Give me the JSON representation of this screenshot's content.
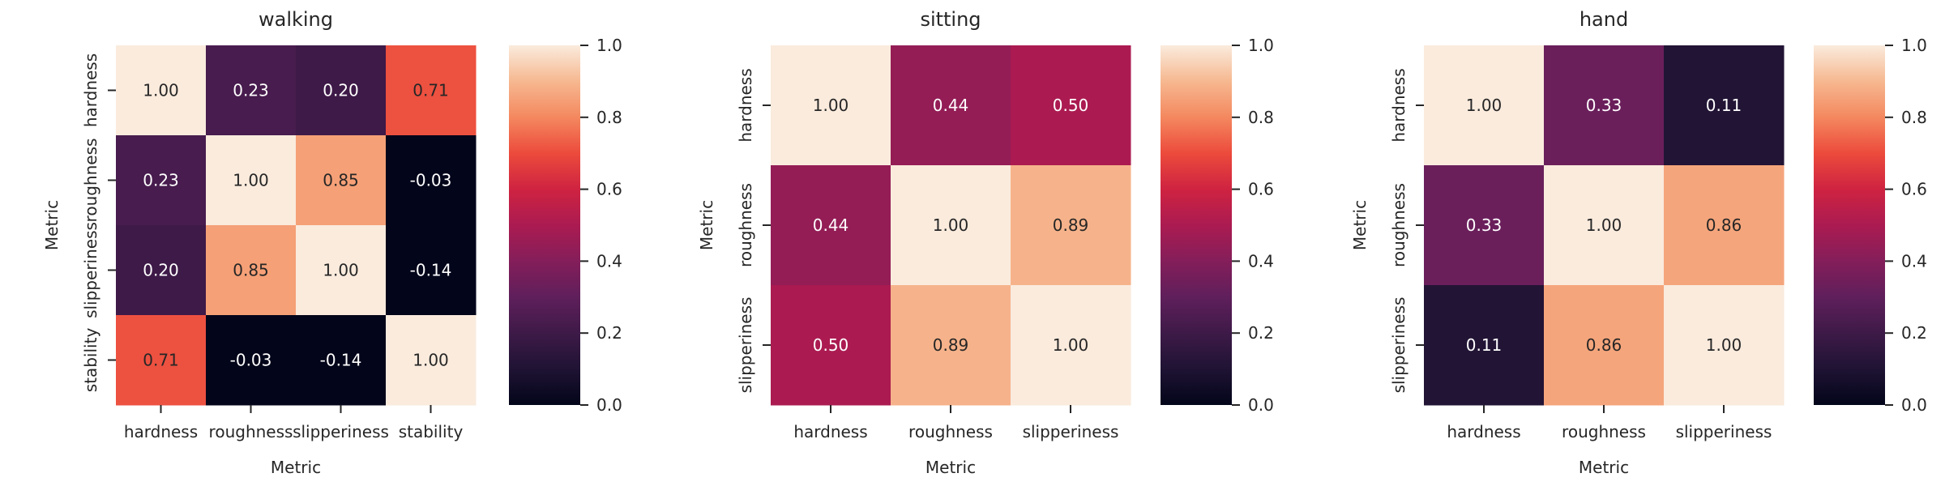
{
  "chart_data": [
    {
      "type": "heatmap",
      "title": "walking",
      "xlabel": "Metric",
      "ylabel": "Metric",
      "categories": [
        "hardness",
        "roughness",
        "slipperiness",
        "stability"
      ],
      "values": [
        [
          1.0,
          0.23,
          0.2,
          0.71
        ],
        [
          0.23,
          1.0,
          0.85,
          -0.03
        ],
        [
          0.2,
          0.85,
          1.0,
          -0.14
        ],
        [
          0.71,
          -0.03,
          -0.14,
          1.0
        ]
      ],
      "colorbar": {
        "range": [
          0.0,
          1.0
        ],
        "ticks": [
          "0.0",
          "0.2",
          "0.4",
          "0.6",
          "0.8",
          "1.0"
        ]
      }
    },
    {
      "type": "heatmap",
      "title": "sitting",
      "xlabel": "Metric",
      "ylabel": "Metric",
      "categories": [
        "hardness",
        "roughness",
        "slipperiness"
      ],
      "values": [
        [
          1.0,
          0.44,
          0.5
        ],
        [
          0.44,
          1.0,
          0.89
        ],
        [
          0.5,
          0.89,
          1.0
        ]
      ],
      "colorbar": {
        "range": [
          0.0,
          1.0
        ],
        "ticks": [
          "0.0",
          "0.2",
          "0.4",
          "0.6",
          "0.8",
          "1.0"
        ]
      }
    },
    {
      "type": "heatmap",
      "title": "hand",
      "xlabel": "Metric",
      "ylabel": "Metric",
      "categories": [
        "hardness",
        "roughness",
        "slipperiness"
      ],
      "values": [
        [
          1.0,
          0.33,
          0.11
        ],
        [
          0.33,
          1.0,
          0.86
        ],
        [
          0.11,
          0.86,
          1.0
        ]
      ],
      "colorbar": {
        "range": [
          0.0,
          1.0
        ],
        "ticks": [
          "0.0",
          "0.2",
          "0.4",
          "0.6",
          "0.8",
          "1.0"
        ]
      }
    }
  ],
  "colormap": "rocket"
}
